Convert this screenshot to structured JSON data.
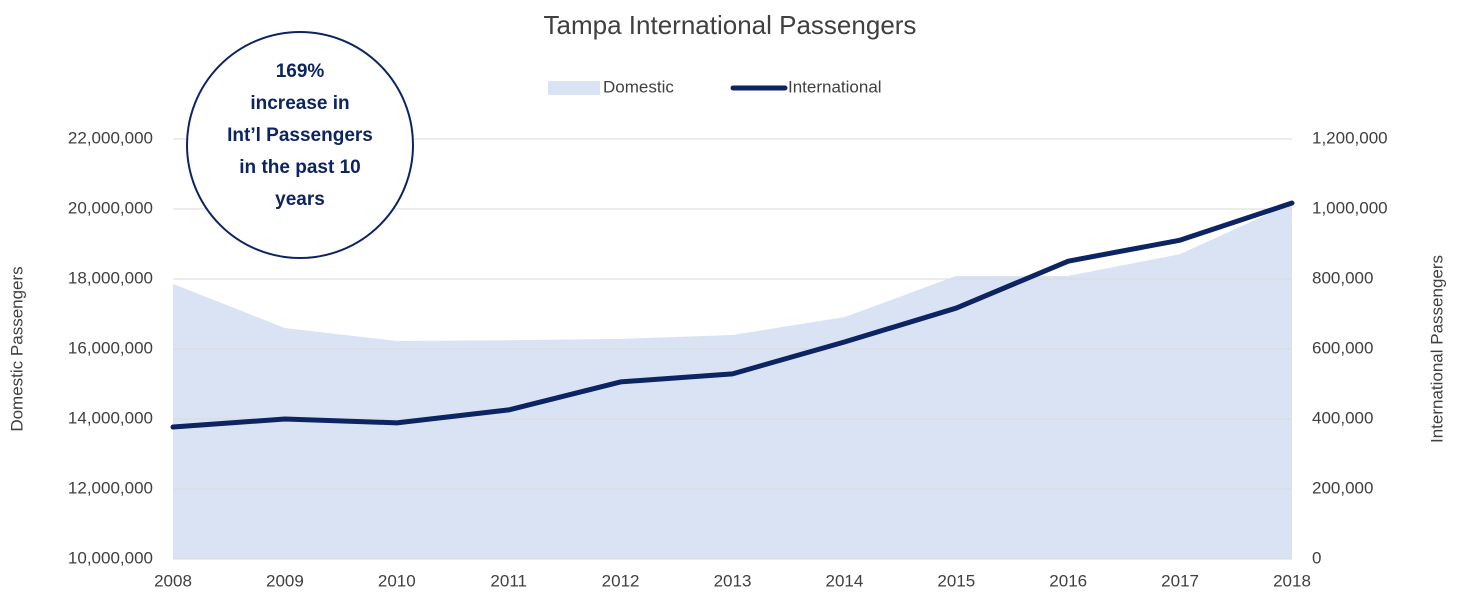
{
  "chart_data": {
    "type": "area_line",
    "title": "Tampa International Passengers",
    "categories": [
      "2008",
      "2009",
      "2010",
      "2011",
      "2012",
      "2013",
      "2014",
      "2015",
      "2016",
      "2017",
      "2018"
    ],
    "series": [
      {
        "name": "Domestic",
        "color": "#dae3f3",
        "type": "area",
        "values": [
          17860000,
          16600000,
          16230000,
          16250000,
          16290000,
          16400000,
          16910000,
          18090000,
          18090000,
          18710000,
          20170000
        ]
      },
      {
        "name": "International",
        "color": "#0c2461",
        "type": "line",
        "axis": "y2",
        "values": [
          377000,
          400000,
          389000,
          426000,
          506000,
          529000,
          620000,
          717000,
          851000,
          911000,
          1017000
        ]
      }
    ],
    "ylabel": "Domestic Passengers",
    "y2label": "International Passengers",
    "ylim": [
      10000000,
      22000000
    ],
    "yticks": [
      {
        "value": 10000000,
        "label": "10,000,000"
      },
      {
        "value": 12000000,
        "label": "12,000,000"
      },
      {
        "value": 14000000,
        "label": "14,000,000"
      },
      {
        "value": 16000000,
        "label": "16,000,000"
      },
      {
        "value": 18000000,
        "label": "18,000,000"
      },
      {
        "value": 20000000,
        "label": "20,000,000"
      },
      {
        "value": 22000000,
        "label": "22,000,000"
      }
    ],
    "y2lim": [
      0,
      1200000
    ],
    "y2ticks": [
      0,
      {
        "value": 200000,
        "label": "200,000"
      },
      {
        "value": 400000,
        "label": "400,000"
      },
      {
        "value": 600000,
        "label": "600,000"
      },
      {
        "value": 800000,
        "label": "800,000"
      },
      {
        "value": 1000000,
        "label": "1,000,000"
      },
      {
        "value": 1200000,
        "label": "1,200,000"
      }
    ],
    "grid": true,
    "legend": "top",
    "annotation": [
      "169%",
      "increase in",
      "Int’l Passengers",
      "in the past 10",
      "years"
    ]
  }
}
